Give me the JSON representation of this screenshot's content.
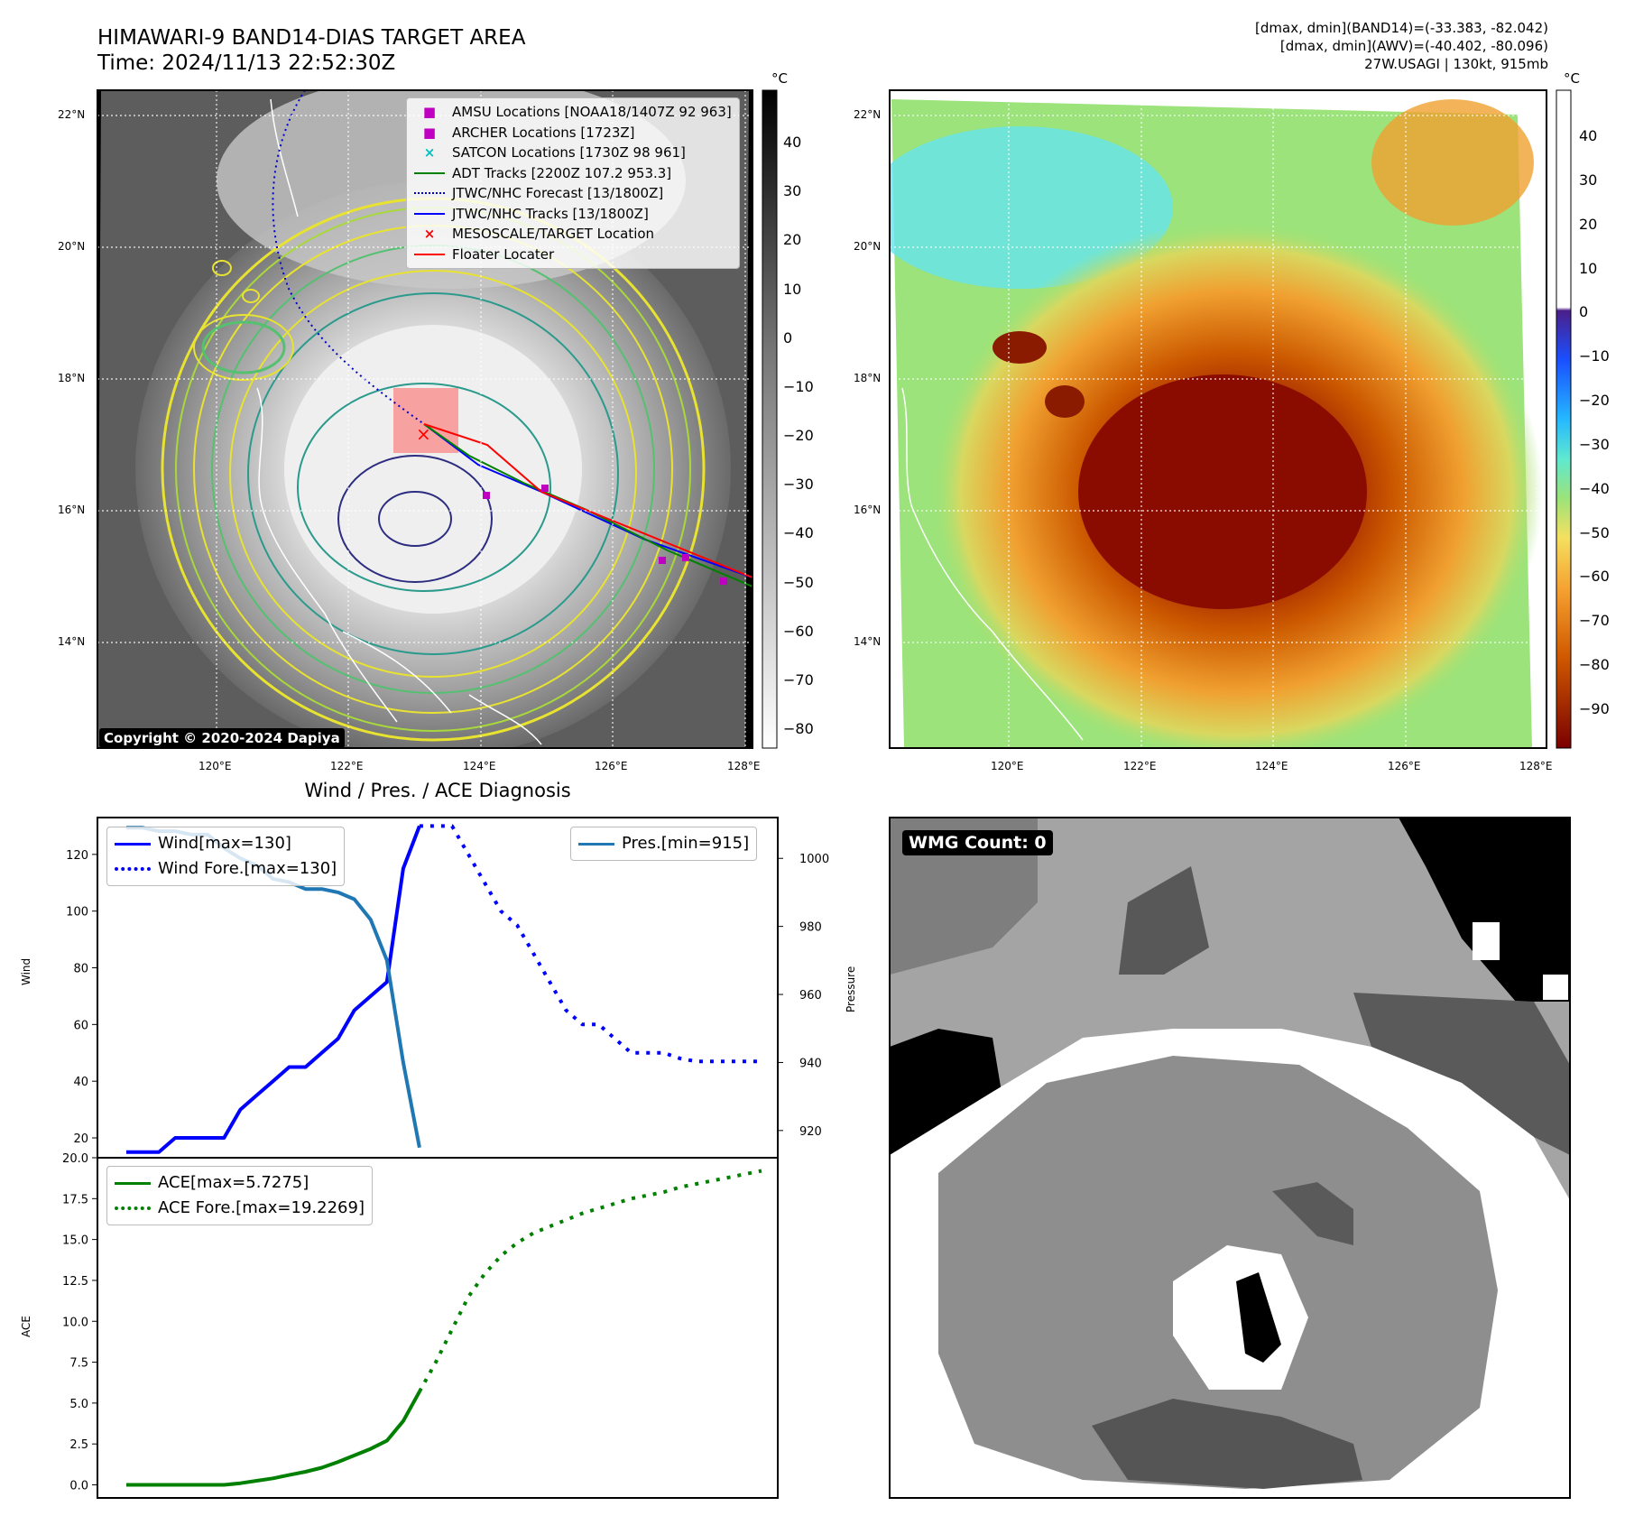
{
  "header": {
    "title": "HIMAWARI-9 BAND14-DIAS TARGET AREA",
    "time": "Time: 2024/11/13 22:52:30Z",
    "info": [
      "[dmax, dmin](BAND14)=(-33.383, -82.042)",
      "[dmax, dmin](AWV)=(-40.402, -80.096)",
      "27W.USAGI | 130kt, 915mb"
    ],
    "copyright": "Copyright © 2020-2024 Dapiya"
  },
  "map_axes": {
    "lat_ticks": [
      "22°N",
      "20°N",
      "18°N",
      "16°N",
      "14°N"
    ],
    "lon_ticks": [
      "120°E",
      "122°E",
      "124°E",
      "126°E",
      "128°E"
    ]
  },
  "ir_legend": [
    {
      "label": "AMSU Locations [NOAA18/1407Z 92 963]",
      "color": "#c000c0",
      "marker": "square"
    },
    {
      "label": "ARCHER Locations [1723Z]",
      "color": "#c000c0",
      "marker": "square"
    },
    {
      "label": "SATCON Locations [1730Z 98 961]",
      "color": "#00bfbf",
      "marker": "x"
    },
    {
      "label": "ADT Tracks [2200Z 107.2 953.3]",
      "color": "#008000",
      "marker": "line"
    },
    {
      "label": "JTWC/NHC Forecast [13/1800Z]",
      "color": "#0000cc",
      "marker": "dotted"
    },
    {
      "label": "JTWC/NHC Tracks [13/1800Z]",
      "color": "#0000ff",
      "marker": "line-dot"
    },
    {
      "label": "MESOSCALE/TARGET Location",
      "color": "#ff0000",
      "marker": "x"
    },
    {
      "label": "Floater Locater",
      "color": "#ff0000",
      "marker": "line"
    }
  ],
  "colorbars": {
    "unit": "°C",
    "gray_ticks": [
      "40",
      "30",
      "20",
      "10",
      "0",
      "−10",
      "−20",
      "−30",
      "−40",
      "−50",
      "−60",
      "−70",
      "−80"
    ],
    "awv_ticks": [
      "40",
      "30",
      "20",
      "10",
      "0",
      "−10",
      "−20",
      "−30",
      "−40",
      "−50",
      "−60",
      "−70",
      "−80",
      "−90"
    ]
  },
  "wmg": {
    "label": "WMG Count: 0"
  },
  "chart_data": [
    {
      "type": "line",
      "title": "Wind / Pres. / ACE Diagnosis",
      "xlabel": "",
      "ylabel": "Wind",
      "ylabel_right": "Pressure",
      "ylim": [
        13,
        133
      ],
      "ylim_right": [
        912,
        1012
      ],
      "y_ticks": [
        "20",
        "40",
        "60",
        "80",
        "100",
        "120"
      ],
      "y_ticks_right": [
        "920",
        "940",
        "960",
        "980",
        "1000"
      ],
      "x": [
        0,
        1,
        2,
        3,
        4,
        5,
        6,
        7,
        8,
        9,
        10,
        11,
        12,
        13,
        14,
        15,
        16,
        17,
        18,
        19,
        20,
        21,
        22,
        23,
        24,
        25,
        26,
        27,
        28,
        29,
        30,
        31,
        32,
        33,
        34,
        35,
        36,
        37,
        38,
        39
      ],
      "series": [
        {
          "name": "Wind[max=130]",
          "color": "#0000ff",
          "style": "solid",
          "axis": "left",
          "x": [
            0,
            1,
            2,
            3,
            4,
            5,
            6,
            7,
            8,
            9,
            10,
            11,
            12,
            13,
            14,
            15,
            16,
            17,
            18
          ],
          "values": [
            15,
            15,
            15,
            20,
            20,
            20,
            20,
            30,
            35,
            40,
            45,
            45,
            50,
            55,
            65,
            70,
            75,
            115,
            130
          ]
        },
        {
          "name": "Wind Fore.[max=130]",
          "color": "#0000ff",
          "style": "dotted",
          "axis": "left",
          "x": [
            18,
            19,
            20,
            21,
            22,
            23,
            24,
            25,
            26,
            27,
            28,
            29,
            30,
            31,
            32,
            33,
            34,
            35,
            36,
            37,
            38,
            39
          ],
          "values": [
            130,
            130,
            130,
            120,
            110,
            100,
            95,
            85,
            75,
            65,
            60,
            60,
            55,
            50,
            50,
            50,
            48,
            47,
            47,
            47,
            47,
            47
          ]
        },
        {
          "name": "Pres.[min=915]",
          "color": "#1f77b4",
          "style": "solid",
          "axis": "right",
          "x": [
            0,
            1,
            2,
            3,
            4,
            5,
            6,
            7,
            8,
            9,
            10,
            11,
            12,
            13,
            14,
            15,
            16,
            17,
            18
          ],
          "values": [
            1009,
            1009,
            1008,
            1008,
            1007,
            1007,
            1003,
            1000,
            998,
            994,
            993,
            991,
            991,
            990,
            988,
            982,
            970,
            940,
            915
          ]
        }
      ],
      "legend": {
        "left": [
          "Wind[max=130]",
          "Wind Fore.[max=130]"
        ],
        "right": [
          "Pres.[min=915]"
        ]
      }
    },
    {
      "type": "line",
      "title": "",
      "xlabel": "",
      "ylabel": "ACE",
      "ylim": [
        -0.8,
        20.0
      ],
      "y_ticks": [
        "0.0",
        "2.5",
        "5.0",
        "7.5",
        "10.0",
        "12.5",
        "15.0",
        "17.5",
        "20.0"
      ],
      "series": [
        {
          "name": "ACE[max=5.7275]",
          "color": "#008000",
          "style": "solid",
          "x": [
            0,
            1,
            2,
            3,
            4,
            5,
            6,
            7,
            8,
            9,
            10,
            11,
            12,
            13,
            14,
            15,
            16,
            17,
            18
          ],
          "values": [
            0,
            0,
            0,
            0,
            0,
            0,
            0,
            0.1,
            0.25,
            0.4,
            0.6,
            0.8,
            1.05,
            1.4,
            1.8,
            2.2,
            2.7,
            3.9,
            5.7
          ]
        },
        {
          "name": "ACE Fore.[max=19.2269]",
          "color": "#008000",
          "style": "dotted",
          "x": [
            18,
            19,
            20,
            21,
            22,
            23,
            24,
            25,
            26,
            27,
            28,
            29,
            30,
            31,
            32,
            33,
            34,
            35,
            36,
            37,
            38,
            39
          ],
          "values": [
            5.7,
            7.5,
            9.5,
            11.5,
            12.9,
            14.0,
            14.8,
            15.4,
            15.8,
            16.2,
            16.6,
            16.9,
            17.2,
            17.5,
            17.7,
            17.9,
            18.2,
            18.4,
            18.6,
            18.8,
            19.0,
            19.2
          ]
        }
      ],
      "legend": {
        "left": [
          "ACE[max=5.7275]",
          "ACE Fore.[max=19.2269]"
        ]
      }
    }
  ]
}
